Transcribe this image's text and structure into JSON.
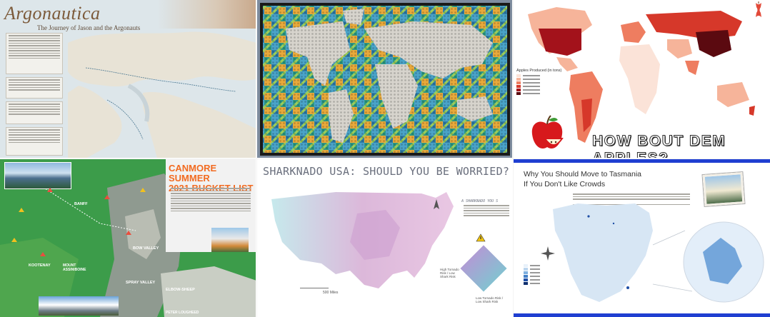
{
  "tiles": {
    "argonautica": {
      "title": "Argonautica",
      "subtitle": "The Journey of Jason and the Argonauts"
    },
    "lego_world": {},
    "apples": {
      "legend_title": "Apples Produced (in tons)",
      "headline": "HOW BOUT DEM APPLES?",
      "colors": {
        "light": "#fbe3d8",
        "mid1": "#f6b49a",
        "mid2": "#ee7d60",
        "mid3": "#d6382a",
        "dark": "#a3121b",
        "darkest": "#5b0a10"
      }
    },
    "canmore": {
      "title_line1": "CANMORE SUMMER",
      "title_line2": "2021 BUCKET LIST",
      "labels": [
        "BANFF",
        "KOOTENAY",
        "MOUNT ASSINIBOINE",
        "BOW VALLEY",
        "SPRAY VALLEY",
        "ELBOW-SHEEP",
        "PETER LOUGHEED"
      ],
      "accent": "#f26b21"
    },
    "sharknado": {
      "title": "SHARKNADO USA: SHOULD YOU BE WORRIED?",
      "sidebar_title": "A SHARKNADO YOU S",
      "legend_top_left": "High Tornado Risk / Low Shark Risk",
      "legend_bottom": "Low Tornado Risk / Low Shark Risk",
      "scale_label": "500 Miles"
    },
    "tasmania": {
      "title_line1": "Why You Should Move to Tasmania",
      "title_line2": "If You Don't Like Crowds",
      "accent": "#1f3fd1"
    }
  }
}
